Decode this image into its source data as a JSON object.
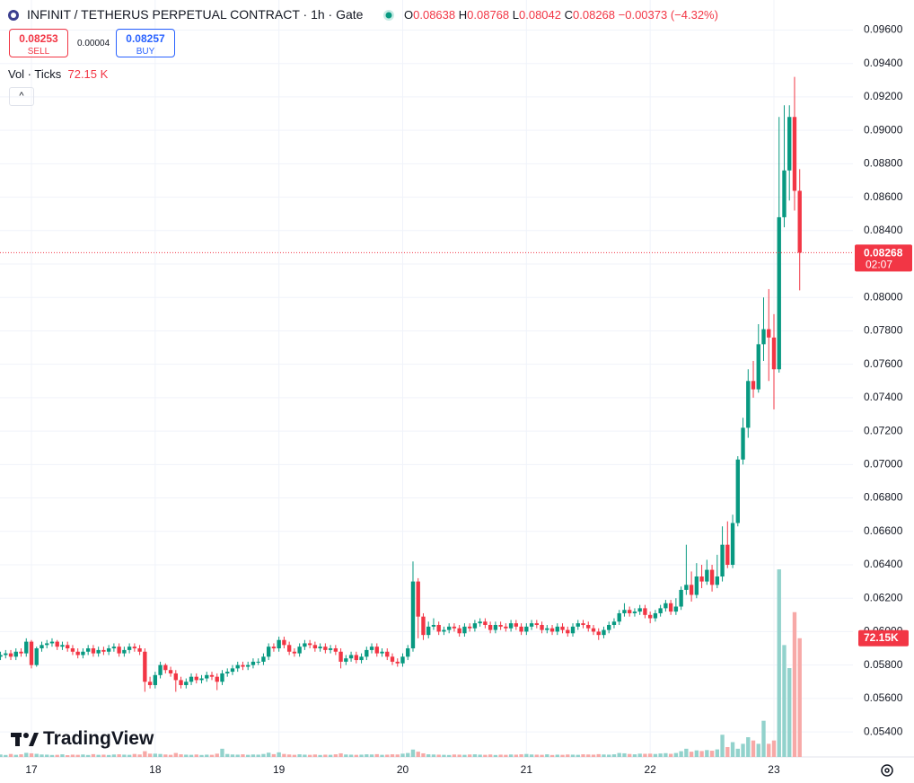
{
  "header": {
    "symbol": "INFINIT / TETHERUS PERPETUAL CONTRACT · 1h · Gate",
    "open_label": "O",
    "high_label": "H",
    "low_label": "L",
    "close_label": "C",
    "change": "−0.00373 (−4.32%)"
  },
  "trade": {
    "sell_price": "0.08253",
    "sell": "SELL",
    "spread": "0.00004",
    "buy_price": "0.08257",
    "buy": "BUY"
  },
  "logo": "TradingView",
  "chart_data": {
    "type": "candlestick",
    "categories": [
      null,
      null,
      null,
      null,
      null,
      null,
      "17",
      null,
      null,
      null,
      null,
      null,
      null,
      null,
      null,
      null,
      null,
      null,
      null,
      null,
      null,
      null,
      null,
      null,
      null,
      null,
      null,
      null,
      null,
      null,
      "18",
      null,
      null,
      null,
      null,
      null,
      null,
      null,
      null,
      null,
      null,
      null,
      null,
      null,
      null,
      null,
      null,
      null,
      null,
      null,
      null,
      null,
      null,
      null,
      "19",
      null,
      null,
      null,
      null,
      null,
      null,
      null,
      null,
      null,
      null,
      null,
      null,
      null,
      null,
      null,
      null,
      null,
      null,
      null,
      null,
      null,
      null,
      null,
      "20",
      null,
      null,
      null,
      null,
      null,
      null,
      null,
      null,
      null,
      null,
      null,
      null,
      null,
      null,
      null,
      null,
      null,
      null,
      null,
      null,
      null,
      null,
      null,
      "21",
      null,
      null,
      null,
      null,
      null,
      null,
      null,
      null,
      null,
      null,
      null,
      null,
      null,
      null,
      null,
      null,
      null,
      null,
      null,
      null,
      null,
      null,
      null,
      "22",
      null,
      null,
      null,
      null,
      null,
      null,
      null,
      null,
      null,
      null,
      null,
      null,
      null,
      null,
      null,
      null,
      null,
      null,
      null,
      null,
      null,
      null,
      null,
      "23",
      null,
      null,
      null,
      null,
      null
    ],
    "open": [
      0.0585,
      0.0586,
      0.0587,
      0.0585,
      0.0588,
      0.0587,
      0.0594,
      0.058,
      0.059,
      0.0592,
      0.0593,
      0.0594,
      0.0591,
      0.0592,
      0.059,
      0.0588,
      0.0586,
      0.0588,
      0.059,
      0.0587,
      0.0589,
      0.0588,
      0.059,
      0.0591,
      0.0587,
      0.0589,
      0.0591,
      0.059,
      0.0588,
      0.057,
      0.0568,
      0.0574,
      0.058,
      0.0577,
      0.0575,
      0.0571,
      0.0568,
      0.057,
      0.0573,
      0.0571,
      0.0572,
      0.0574,
      0.0573,
      0.057,
      0.0575,
      0.0576,
      0.0578,
      0.058,
      0.0579,
      0.058,
      0.0582,
      0.0582,
      0.0585,
      0.0591,
      0.059,
      0.0595,
      0.0592,
      0.0588,
      0.0587,
      0.0591,
      0.0593,
      0.0592,
      0.059,
      0.0591,
      0.0589,
      0.059,
      0.0588,
      0.0582,
      0.0584,
      0.0586,
      0.0583,
      0.0585,
      0.0589,
      0.0591,
      0.0587,
      0.0588,
      0.0585,
      0.0582,
      0.0581,
      0.0585,
      0.059,
      0.063,
      0.0609,
      0.0598,
      0.0603,
      0.0604,
      0.06,
      0.0601,
      0.0603,
      0.0602,
      0.0599,
      0.0603,
      0.0602,
      0.0605,
      0.0606,
      0.0604,
      0.0601,
      0.0604,
      0.0603,
      0.0602,
      0.0605,
      0.0603,
      0.06,
      0.0603,
      0.0605,
      0.0604,
      0.0601,
      0.0602,
      0.06,
      0.0603,
      0.0601,
      0.0599,
      0.0603,
      0.0605,
      0.0604,
      0.0602,
      0.06,
      0.0598,
      0.0601,
      0.0604,
      0.0606,
      0.0611,
      0.0613,
      0.0611,
      0.0612,
      0.0614,
      0.061,
      0.0608,
      0.0611,
      0.0614,
      0.0617,
      0.0612,
      0.0615,
      0.0625,
      0.0628,
      0.0622,
      0.0633,
      0.063,
      0.0637,
      0.0628,
      0.0633,
      0.0652,
      0.064,
      0.0665,
      0.0703,
      0.0722,
      0.075,
      0.0745,
      0.0772,
      0.0781,
      0.0776,
      0.0757,
      0.0848,
      0.0876,
      0.0908,
      0.08638
    ],
    "high": [
      0.0588,
      0.0589,
      0.0589,
      0.059,
      0.059,
      0.0596,
      0.0595,
      0.0591,
      0.0594,
      0.0595,
      0.0596,
      0.0595,
      0.0594,
      0.0594,
      0.0592,
      0.059,
      0.059,
      0.0592,
      0.0592,
      0.0591,
      0.0591,
      0.0592,
      0.0593,
      0.0593,
      0.0591,
      0.0593,
      0.0593,
      0.0592,
      0.059,
      0.0573,
      0.0576,
      0.0582,
      0.0581,
      0.0579,
      0.0577,
      0.0573,
      0.0572,
      0.0575,
      0.0575,
      0.0574,
      0.0576,
      0.0576,
      0.0575,
      0.0577,
      0.0578,
      0.058,
      0.0582,
      0.0582,
      0.0582,
      0.0584,
      0.0584,
      0.0587,
      0.0593,
      0.0593,
      0.0597,
      0.0597,
      0.0594,
      0.059,
      0.0593,
      0.0595,
      0.0595,
      0.0594,
      0.0593,
      0.0593,
      0.0592,
      0.0592,
      0.059,
      0.0586,
      0.0588,
      0.0588,
      0.0587,
      0.0591,
      0.0593,
      0.0593,
      0.059,
      0.059,
      0.0587,
      0.0584,
      0.0587,
      0.0592,
      0.0642,
      0.0632,
      0.0611,
      0.0606,
      0.0608,
      0.0606,
      0.0603,
      0.0605,
      0.0605,
      0.0604,
      0.0605,
      0.0605,
      0.0607,
      0.0608,
      0.0608,
      0.0606,
      0.0606,
      0.0606,
      0.0605,
      0.0607,
      0.0607,
      0.0605,
      0.0605,
      0.0607,
      0.0607,
      0.0606,
      0.0604,
      0.0604,
      0.0605,
      0.0605,
      0.0603,
      0.0605,
      0.0607,
      0.0607,
      0.0606,
      0.0604,
      0.0602,
      0.0603,
      0.0606,
      0.0608,
      0.0613,
      0.0617,
      0.0615,
      0.0614,
      0.0616,
      0.0616,
      0.0612,
      0.0613,
      0.0616,
      0.0619,
      0.0619,
      0.062,
      0.0627,
      0.0652,
      0.0636,
      0.0641,
      0.064,
      0.0643,
      0.064,
      0.0646,
      0.0663,
      0.0666,
      0.067,
      0.0705,
      0.0728,
      0.0757,
      0.0762,
      0.0784,
      0.08,
      0.0805,
      0.079,
      0.0908,
      0.0915,
      0.0915,
      0.0932,
      0.08768
    ],
    "low": [
      0.0583,
      0.0584,
      0.0583,
      0.0583,
      0.0585,
      0.0585,
      0.0578,
      0.0579,
      0.0588,
      0.059,
      0.0591,
      0.0589,
      0.0589,
      0.0588,
      0.0586,
      0.0584,
      0.0584,
      0.0586,
      0.0585,
      0.0585,
      0.0586,
      0.0586,
      0.0588,
      0.0585,
      0.0585,
      0.0587,
      0.0588,
      0.0586,
      0.0564,
      0.0566,
      0.0566,
      0.0572,
      0.0575,
      0.0573,
      0.0564,
      0.0566,
      0.0566,
      0.0568,
      0.0569,
      0.0569,
      0.057,
      0.0571,
      0.0565,
      0.0568,
      0.0573,
      0.0574,
      0.0576,
      0.0577,
      0.0577,
      0.0578,
      0.058,
      0.058,
      0.0583,
      0.0588,
      0.0588,
      0.059,
      0.0586,
      0.0585,
      0.0585,
      0.0589,
      0.059,
      0.0588,
      0.0588,
      0.0587,
      0.0587,
      0.0586,
      0.0578,
      0.058,
      0.0582,
      0.0581,
      0.0581,
      0.0583,
      0.0587,
      0.0585,
      0.0585,
      0.0583,
      0.058,
      0.0579,
      0.0579,
      0.0583,
      0.0588,
      0.0596,
      0.0595,
      0.0596,
      0.0601,
      0.0598,
      0.0598,
      0.0599,
      0.06,
      0.0597,
      0.0597,
      0.06,
      0.06,
      0.0603,
      0.0602,
      0.0599,
      0.0599,
      0.0601,
      0.06,
      0.06,
      0.0601,
      0.0598,
      0.0598,
      0.0601,
      0.0602,
      0.0599,
      0.0599,
      0.0598,
      0.0598,
      0.0599,
      0.0597,
      0.0597,
      0.0601,
      0.0602,
      0.06,
      0.0598,
      0.0595,
      0.0596,
      0.0599,
      0.0602,
      0.0604,
      0.0609,
      0.0609,
      0.0609,
      0.061,
      0.0608,
      0.0605,
      0.0606,
      0.0609,
      0.0612,
      0.061,
      0.061,
      0.0613,
      0.0622,
      0.0618,
      0.062,
      0.0626,
      0.0628,
      0.0624,
      0.0626,
      0.063,
      0.0638,
      0.0638,
      0.0663,
      0.07,
      0.0716,
      0.074,
      0.0743,
      0.0762,
      0.075,
      0.0733,
      0.0755,
      0.0842,
      0.0858,
      0.0852,
      0.08042
    ],
    "close": [
      0.0586,
      0.0587,
      0.0585,
      0.0588,
      0.0587,
      0.0594,
      0.058,
      0.059,
      0.0592,
      0.0593,
      0.0594,
      0.0591,
      0.0592,
      0.059,
      0.0588,
      0.0586,
      0.0588,
      0.059,
      0.0587,
      0.0589,
      0.0588,
      0.059,
      0.0591,
      0.0587,
      0.0589,
      0.0591,
      0.059,
      0.0588,
      0.057,
      0.0568,
      0.0574,
      0.058,
      0.0577,
      0.0575,
      0.0571,
      0.0568,
      0.057,
      0.0573,
      0.0571,
      0.0572,
      0.0574,
      0.0573,
      0.057,
      0.0575,
      0.0576,
      0.0578,
      0.058,
      0.0579,
      0.058,
      0.0582,
      0.0582,
      0.0585,
      0.0591,
      0.059,
      0.0595,
      0.0592,
      0.0588,
      0.0587,
      0.0591,
      0.0593,
      0.0592,
      0.059,
      0.0591,
      0.0589,
      0.059,
      0.0588,
      0.0582,
      0.0584,
      0.0586,
      0.0583,
      0.0585,
      0.0589,
      0.0591,
      0.0587,
      0.0588,
      0.0585,
      0.0582,
      0.0581,
      0.0585,
      0.059,
      0.063,
      0.0609,
      0.0598,
      0.0603,
      0.0604,
      0.06,
      0.0601,
      0.0603,
      0.0602,
      0.0599,
      0.0603,
      0.0602,
      0.0605,
      0.0606,
      0.0604,
      0.0601,
      0.0604,
      0.0603,
      0.0602,
      0.0605,
      0.0603,
      0.06,
      0.0603,
      0.0605,
      0.0604,
      0.0601,
      0.0602,
      0.06,
      0.0603,
      0.0601,
      0.0599,
      0.0603,
      0.0605,
      0.0604,
      0.0602,
      0.06,
      0.0598,
      0.0601,
      0.0604,
      0.0606,
      0.0611,
      0.0613,
      0.0611,
      0.0612,
      0.0614,
      0.061,
      0.0608,
      0.0611,
      0.0614,
      0.0617,
      0.0612,
      0.0615,
      0.0625,
      0.0628,
      0.0622,
      0.0633,
      0.063,
      0.0637,
      0.0628,
      0.0633,
      0.0652,
      0.064,
      0.0665,
      0.0703,
      0.0722,
      0.075,
      0.0745,
      0.0772,
      0.0781,
      0.0776,
      0.0757,
      0.0848,
      0.0876,
      0.0908,
      0.08638,
      0.08268
    ],
    "volume": [
      1500,
      1200,
      1800,
      1300,
      1600,
      2500,
      2200,
      1900,
      1500,
      1400,
      1200,
      1300,
      1600,
      1100,
      1400,
      1300,
      1500,
      1200,
      1700,
      1300,
      1400,
      1200,
      1500,
      1600,
      1400,
      1300,
      1800,
      1500,
      3500,
      2000,
      2000,
      1800,
      1500,
      1300,
      2400,
      1600,
      1400,
      1300,
      1500,
      1200,
      1400,
      1300,
      2000,
      5000,
      1800,
      1500,
      1400,
      1600,
      1300,
      1500,
      1400,
      1800,
      2600,
      1700,
      2800,
      1800,
      1500,
      1300,
      1600,
      1400,
      1300,
      1500,
      1200,
      1400,
      1300,
      1600,
      2200,
      1500,
      1400,
      1300,
      1400,
      1600,
      1500,
      1700,
      1300,
      1400,
      1600,
      1500,
      2000,
      2400,
      4500,
      3200,
      2200,
      1600,
      1500,
      1400,
      1300,
      1200,
      1500,
      1400,
      1300,
      1500,
      1600,
      1400,
      1300,
      1500,
      1200,
      1400,
      1300,
      1500,
      1400,
      1600,
      1800,
      1500,
      1400,
      1300,
      1600,
      1200,
      1400,
      1300,
      1500,
      1400,
      1300,
      1600,
      1500,
      1400,
      1700,
      1500,
      1400,
      1600,
      2400,
      2200,
      1800,
      1600,
      2000,
      1900,
      2000,
      1800,
      2100,
      2300,
      1900,
      2400,
      3500,
      5000,
      3200,
      4000,
      3600,
      4200,
      3800,
      4600,
      13500,
      6000,
      9000,
      5000,
      8000,
      12000,
      10000,
      8000,
      22000,
      8000,
      10000,
      114000,
      68000,
      54000,
      88000,
      72150
    ],
    "volume_title": "Vol · Ticks",
    "volume_label": "72.15 K",
    "volume_axis_label": "72.15K",
    "countdown": "02:07",
    "ylim": [
      0.0525,
      0.0978
    ],
    "yticks": [
      {
        "value": 0.054,
        "label": "0.05400"
      },
      {
        "value": 0.056,
        "label": "0.05600"
      },
      {
        "value": 0.058,
        "label": "0.05800"
      },
      {
        "value": 0.06,
        "label": "0.06000"
      },
      {
        "value": 0.062,
        "label": "0.06200"
      },
      {
        "value": 0.064,
        "label": "0.06400"
      },
      {
        "value": 0.066,
        "label": "0.06600"
      },
      {
        "value": 0.068,
        "label": "0.06800"
      },
      {
        "value": 0.07,
        "label": "0.07000"
      },
      {
        "value": 0.072,
        "label": "0.07200"
      },
      {
        "value": 0.074,
        "label": "0.07400"
      },
      {
        "value": 0.076,
        "label": "0.07600"
      },
      {
        "value": 0.078,
        "label": "0.07800"
      },
      {
        "value": 0.08,
        "label": "0.08000"
      },
      {
        "value": 0.082,
        "label": "0.08200"
      },
      {
        "value": 0.084,
        "label": "0.08400"
      },
      {
        "value": 0.086,
        "label": "0.08600"
      },
      {
        "value": 0.088,
        "label": "0.08800"
      },
      {
        "value": 0.09,
        "label": "0.09000"
      },
      {
        "value": 0.092,
        "label": "0.09200"
      },
      {
        "value": 0.094,
        "label": "0.09400"
      },
      {
        "value": 0.096,
        "label": "0.09600"
      }
    ],
    "volume_ylim": [
      0,
      460000
    ],
    "grid": true,
    "up_color": "#089981",
    "down_color": "#f23645",
    "volume_up_color": "#92d2cc",
    "volume_down_color": "#f7a9a7"
  }
}
